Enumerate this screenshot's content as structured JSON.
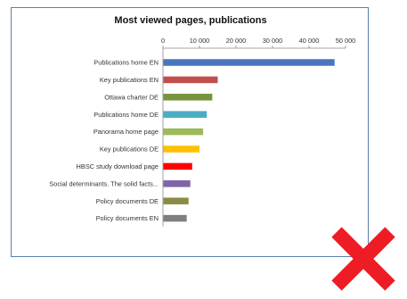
{
  "chart_data": {
    "type": "bar",
    "orientation": "horizontal",
    "title": "Most viewed pages, publications",
    "categories": [
      "Publications home EN",
      "Key publications EN",
      "Ottawa charter DE",
      "Publications home DE",
      "Panorama home page",
      "Key publications DE",
      "HBSC study download page",
      "Social determinants. The solid facts...",
      "Policy documents DE",
      "Policy documents EN"
    ],
    "tick_labels": [
      "0",
      "10 000",
      "20 000",
      "30 000",
      "40 000",
      "50 000"
    ],
    "series": [
      {
        "values": [
          47000,
          15000,
          13500,
          12000,
          11000,
          10000,
          8000,
          7500,
          7000,
          6500
        ]
      }
    ],
    "bar_colors": [
      "#4a76c0",
      "#c0504d",
      "#77933c",
      "#4bacc6",
      "#9bbb59",
      "#ffc000",
      "#ff0000",
      "#7f66a6",
      "#8b8b46",
      "#7f7f7f"
    ],
    "xlim": [
      0,
      50000
    ],
    "x_axis_position": "top",
    "grid": false,
    "legend": "none"
  },
  "overlay": {
    "mark_icon": "red-x-cross-icon",
    "color": "#ee1c24"
  }
}
